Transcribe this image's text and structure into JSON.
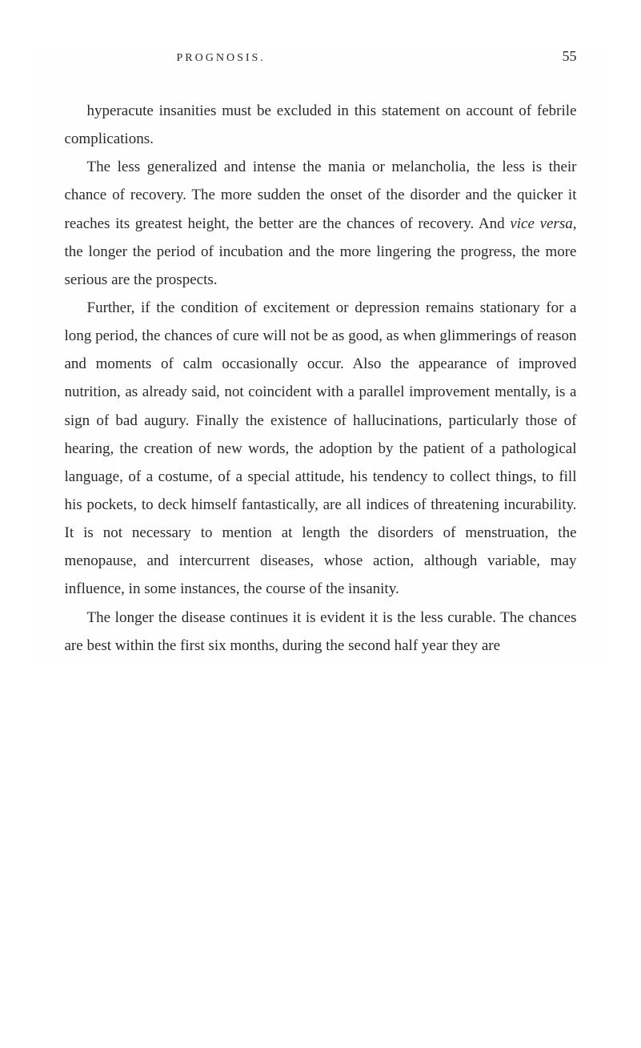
{
  "header": {
    "title": "PROGNOSIS.",
    "page_number": "55"
  },
  "paragraphs": {
    "p1": "hyperacute insanities must be excluded in this statement on account of febrile complications.",
    "p2_a": "The less generalized and intense the mania or melancholia, the less is their chance of recovery. The more sudden the onset of the disorder and the quicker it reaches its greatest height, the better are the chances of recovery. And ",
    "p2_italic": "vice versa",
    "p2_b": ", the longer the period of incubation and the more lingering the progress, the more serious are the prospects.",
    "p3": "Further, if the condition of excitement or depression remains stationary for a long period, the chances of cure will not be as good, as when glimmerings of reason and moments of calm occasionally occur. Also the appearance of improved nutrition, as already said, not coincident with a parallel improvement mentally, is a sign of bad augury. Finally the existence of hallucinations, particularly those of hearing, the creation of new words, the adoption by the patient of a pathological language, of a costume, of a special attitude, his tendency to collect things, to fill his pockets, to deck himself fantastically, are all indices of threatening incurability. It is not necessary to mention at length the disorders of menstruation, the menopause, and intercurrent diseases, whose action, although variable, may influence, in some instances, the course of the insanity.",
    "p4": "The longer the disease continues it is evident it is the less curable. The chances are best within the first six months, during the second half year they are"
  },
  "style": {
    "background_color": "#ffffff",
    "text_color": "#2a2a2a",
    "body_fontsize": 19,
    "header_fontsize": 14,
    "page_number_fontsize": 18,
    "line_height": 1.85
  }
}
